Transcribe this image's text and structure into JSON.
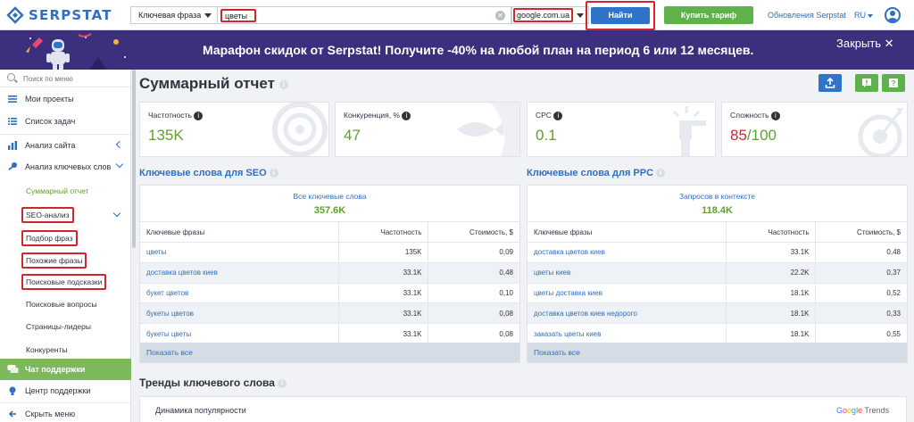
{
  "topbar": {
    "logo_text": "SERPSTAT",
    "search_type": "Ключевая фраза",
    "query": "цветы",
    "database": "google.com.ua",
    "find_label": "Найти",
    "buy_label": "Купить тариф",
    "updates_label": "Обновления Serpstat",
    "lang_label": "RU"
  },
  "promo": {
    "text": "Марафон скидок от Serpstat! Получите -40% на любой план на период 6 или 12 месяцев.",
    "close_label": "Закрыть ✕"
  },
  "sidebar": {
    "search_placeholder": "Поиск по меню",
    "items": [
      {
        "label": "Мои проекты"
      },
      {
        "label": "Список задач"
      },
      {
        "label": "Анализ сайта"
      },
      {
        "label": "Анализ ключевых слов"
      }
    ],
    "sub_items": [
      {
        "label": "Суммарный отчет"
      },
      {
        "label": "SEO-анализ"
      },
      {
        "label": "Подбор фраз"
      },
      {
        "label": "Похожие фразы"
      },
      {
        "label": "Поисковые подсказки"
      },
      {
        "label": "Поисковые вопросы"
      },
      {
        "label": "Страницы-лидеры"
      },
      {
        "label": "Конкуренты"
      }
    ],
    "support_chat": "Чат поддержки",
    "support_center": "Центр поддержки",
    "hide_menu": "Скрыть меню"
  },
  "main": {
    "title": "Суммарный отчет",
    "stats": [
      {
        "label": "Частотность",
        "value": "135K"
      },
      {
        "label": "Конкуренция, %",
        "value": "47"
      },
      {
        "label": "CPC",
        "value": "0.1"
      },
      {
        "label": "Сложность",
        "value_main": "85",
        "value_total": "/100"
      }
    ],
    "seo": {
      "title": "Ключевые слова для SEO",
      "head_link": "Все ключевые слова",
      "head_value": "357.6K",
      "columns": [
        "Ключевые фразы",
        "Частотность",
        "Стоимость, $"
      ],
      "rows": [
        [
          "цветы",
          "135K",
          "0,09"
        ],
        [
          "доставка цветов киев",
          "33.1K",
          "0,48"
        ],
        [
          "букет цветов",
          "33.1K",
          "0,10"
        ],
        [
          "букеты цветов",
          "33.1K",
          "0,08"
        ],
        [
          "букеты цветы",
          "33.1K",
          "0,08"
        ]
      ],
      "show_all": "Показать все"
    },
    "ppc": {
      "title": "Ключевые слова для PPC",
      "head_link": "Запросов в контексте",
      "head_value": "118.4K",
      "columns": [
        "Ключевые фразы",
        "Частотность",
        "Стоимость, $"
      ],
      "rows": [
        [
          "доставка цветов киев",
          "33.1K",
          "0,48"
        ],
        [
          "цветы киев",
          "22.2K",
          "0,37"
        ],
        [
          "цветы доставка киев",
          "18.1K",
          "0,52"
        ],
        [
          "доставка цветов киев недорого",
          "18.1K",
          "0,33"
        ],
        [
          "заказать цветы киев",
          "18.1K",
          "0,55"
        ]
      ],
      "show_all": "Показать все"
    },
    "trends": {
      "title": "Тренды ключевого слова",
      "dynamics": "Динамика популярности",
      "brand": "Google Trends"
    }
  },
  "colors": {
    "accent_blue": "#2f74c9",
    "green": "#5fb24b",
    "value_green": "#5fa033",
    "promo_purple": "#3c2f7d",
    "highlight_red": "#d0262e"
  }
}
